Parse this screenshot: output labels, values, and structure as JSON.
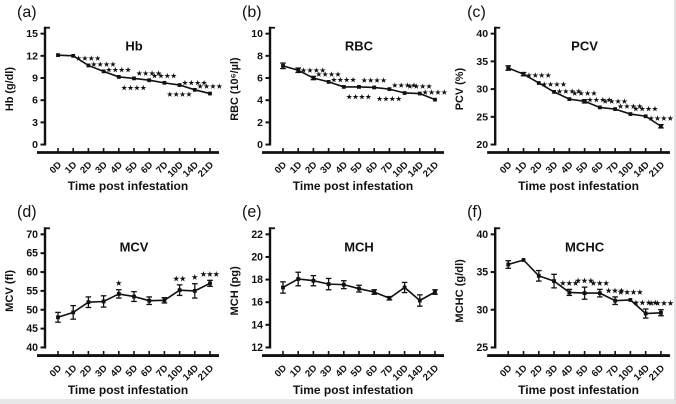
{
  "figure": {
    "ink": "#111111",
    "edge_color": "#e7e7e7",
    "xlabel": "Time post infestation",
    "categories": [
      "0D",
      "1D",
      "2D",
      "3D",
      "4D",
      "5D",
      "6D",
      "7D",
      "10D",
      "14D",
      "21D"
    ]
  },
  "chart_data": [
    {
      "type": "line",
      "letter": "(a)",
      "title": "Hb",
      "ylabel": "Hb (g/dl)",
      "xlabel": "Time post infestation",
      "categories": [
        "0D",
        "1D",
        "2D",
        "3D",
        "4D",
        "5D",
        "6D",
        "7D",
        "10D",
        "14D",
        "21D"
      ],
      "ylim": [
        0,
        15
      ],
      "yticks": [
        0,
        3,
        6,
        9,
        12,
        15
      ],
      "values": [
        12.1,
        12.0,
        10.7,
        9.9,
        9.15,
        8.95,
        8.7,
        8.35,
        8.05,
        7.4,
        6.9
      ],
      "errors": [
        0.18,
        0.12,
        0.12,
        0.12,
        0.1,
        0.1,
        0.1,
        0.1,
        0.1,
        0.12,
        0.12
      ],
      "significance": [
        {
          "i": 2,
          "t": "****",
          "pos": "above"
        },
        {
          "i": 3,
          "t": "****",
          "pos": "above"
        },
        {
          "i": 4,
          "t": "****",
          "pos": "above"
        },
        {
          "i": 5,
          "t": "****",
          "pos": "below"
        },
        {
          "i": 6,
          "t": "****",
          "pos": "above"
        },
        {
          "i": 7,
          "t": "****",
          "pos": "above"
        },
        {
          "i": 8,
          "t": "****",
          "pos": "below"
        },
        {
          "i": 9,
          "t": "****",
          "pos": "above"
        },
        {
          "i": 10,
          "t": "****",
          "pos": "above"
        }
      ]
    },
    {
      "type": "line",
      "letter": "(b)",
      "title": "RBC",
      "ylabel": "RBC (10⁶/µl)",
      "xlabel": "Time post infestation",
      "categories": [
        "0D",
        "1D",
        "2D",
        "3D",
        "4D",
        "5D",
        "6D",
        "7D",
        "10D",
        "14D",
        "21D"
      ],
      "ylim": [
        0,
        10
      ],
      "yticks": [
        0,
        2,
        4,
        6,
        8,
        10
      ],
      "values": [
        7.1,
        6.7,
        6.0,
        5.65,
        5.2,
        5.2,
        5.15,
        5.0,
        4.65,
        4.6,
        4.05
      ],
      "errors": [
        0.25,
        0.2,
        0.15,
        0.12,
        0.1,
        0.1,
        0.1,
        0.1,
        0.12,
        0.1,
        0.1
      ],
      "significance": [
        {
          "i": 2,
          "t": "****",
          "pos": "above"
        },
        {
          "i": 3,
          "t": "****",
          "pos": "above"
        },
        {
          "i": 4,
          "t": "****",
          "pos": "above"
        },
        {
          "i": 5,
          "t": "****",
          "pos": "below"
        },
        {
          "i": 6,
          "t": "****",
          "pos": "above"
        },
        {
          "i": 7,
          "t": "****",
          "pos": "below"
        },
        {
          "i": 8,
          "t": "****",
          "pos": "above"
        },
        {
          "i": 9,
          "t": "****",
          "pos": "above"
        },
        {
          "i": 10,
          "t": "****",
          "pos": "above"
        }
      ]
    },
    {
      "type": "line",
      "letter": "(c)",
      "title": "PCV",
      "ylabel": "PCV (%)",
      "xlabel": "Time post infestation",
      "categories": [
        "0D",
        "1D",
        "2D",
        "3D",
        "4D",
        "5D",
        "6D",
        "7D",
        "10D",
        "14D",
        "21D"
      ],
      "ylim": [
        20,
        40
      ],
      "yticks": [
        20,
        25,
        30,
        35,
        40
      ],
      "values": [
        33.8,
        32.7,
        31.1,
        29.5,
        28.2,
        27.8,
        26.7,
        26.4,
        25.5,
        25.1,
        23.3
      ],
      "errors": [
        0.4,
        0.3,
        0.25,
        0.25,
        0.25,
        0.3,
        0.25,
        0.25,
        0.25,
        0.25,
        0.3
      ],
      "significance": [
        {
          "i": 2,
          "t": "****",
          "pos": "above"
        },
        {
          "i": 3,
          "t": "****",
          "pos": "above"
        },
        {
          "i": 4,
          "t": "****",
          "pos": "above"
        },
        {
          "i": 5,
          "t": "****",
          "pos": "above"
        },
        {
          "i": 6,
          "t": "****",
          "pos": "above"
        },
        {
          "i": 7,
          "t": "****",
          "pos": "above"
        },
        {
          "i": 8,
          "t": "****",
          "pos": "above"
        },
        {
          "i": 9,
          "t": "****",
          "pos": "above"
        },
        {
          "i": 10,
          "t": "****",
          "pos": "above"
        }
      ]
    },
    {
      "type": "line",
      "letter": "(d)",
      "title": "MCV",
      "ylabel": "MCV (fl)",
      "xlabel": "Time post infestation",
      "categories": [
        "0D",
        "1D",
        "2D",
        "3D",
        "4D",
        "5D",
        "6D",
        "7D",
        "10D",
        "14D",
        "21D"
      ],
      "ylim": [
        40,
        70
      ],
      "yticks": [
        40,
        45,
        50,
        55,
        60,
        65,
        70
      ],
      "values": [
        48.0,
        49.3,
        52.0,
        52.2,
        54.2,
        53.5,
        52.4,
        52.5,
        55.2,
        55.0,
        57.0
      ],
      "errors": [
        1.3,
        1.8,
        1.4,
        1.5,
        1.1,
        1.3,
        1.0,
        0.7,
        1.4,
        1.9,
        0.8
      ],
      "significance": [
        {
          "i": 4,
          "t": "*",
          "pos": "above"
        },
        {
          "i": 8,
          "t": "**",
          "pos": "above"
        },
        {
          "i": 9,
          "t": "*",
          "pos": "above"
        },
        {
          "i": 10,
          "t": "***",
          "pos": "above"
        }
      ]
    },
    {
      "type": "line",
      "letter": "(e)",
      "title": "MCH",
      "ylabel": "MCH (pg)",
      "xlabel": "Time post infestation",
      "categories": [
        "0D",
        "1D",
        "2D",
        "3D",
        "4D",
        "5D",
        "6D",
        "7D",
        "10D",
        "14D",
        "21D"
      ],
      "ylim": [
        12,
        22
      ],
      "yticks": [
        12,
        14,
        16,
        18,
        20,
        22
      ],
      "values": [
        17.3,
        18.05,
        17.9,
        17.6,
        17.55,
        17.2,
        16.9,
        16.35,
        17.3,
        16.15,
        16.9
      ],
      "errors": [
        0.5,
        0.6,
        0.45,
        0.5,
        0.35,
        0.3,
        0.2,
        0.15,
        0.45,
        0.5,
        0.2
      ],
      "significance": []
    },
    {
      "type": "line",
      "letter": "(f)",
      "title": "MCHC",
      "ylabel": "MCHC (g/dl)",
      "xlabel": "Time post infestation",
      "categories": [
        "0D",
        "1D",
        "2D",
        "3D",
        "4D",
        "5D",
        "6D",
        "7D",
        "10D",
        "14D",
        "21D"
      ],
      "ylim": [
        25,
        40
      ],
      "yticks": [
        25,
        30,
        35,
        40
      ],
      "values": [
        36.0,
        36.6,
        34.5,
        33.8,
        32.3,
        32.2,
        32.2,
        31.2,
        31.3,
        29.5,
        29.6
      ],
      "errors": [
        0.5,
        0.2,
        0.7,
        0.9,
        0.4,
        0.8,
        0.5,
        0.5,
        0.2,
        0.6,
        0.4
      ],
      "significance": [
        {
          "i": 4,
          "t": "***",
          "pos": "above"
        },
        {
          "i": 5,
          "t": "***",
          "pos": "above"
        },
        {
          "i": 6,
          "t": "***",
          "pos": "above"
        },
        {
          "i": 7,
          "t": "***",
          "pos": "above"
        },
        {
          "i": 8,
          "t": "****",
          "pos": "above"
        },
        {
          "i": 9,
          "t": "****",
          "pos": "above"
        },
        {
          "i": 10,
          "t": "****",
          "pos": "above"
        }
      ]
    }
  ]
}
